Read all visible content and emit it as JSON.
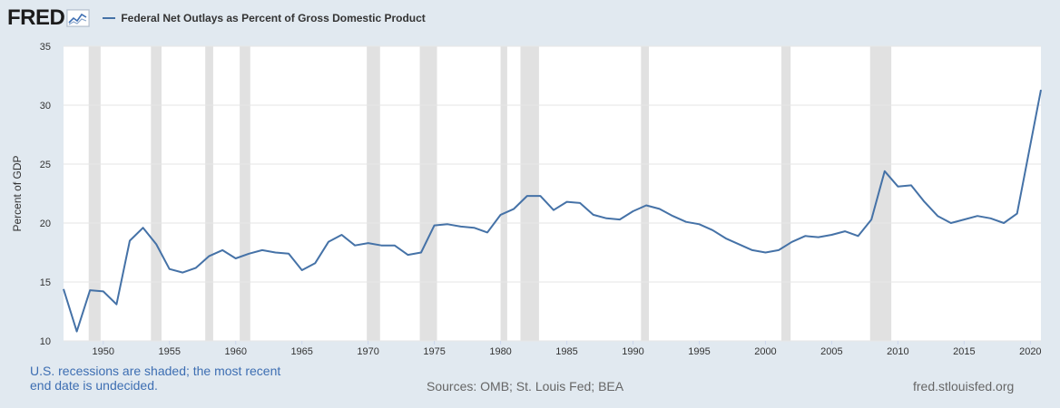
{
  "header": {
    "logo_text": "FRED",
    "logo_icon": "trend-line-icon",
    "legend_label": "Federal Net Outlays as Percent of Gross Domestic Product",
    "series_color": "#4572a7"
  },
  "footer": {
    "recession_note": "U.S. recessions are shaded; the most recent end date is undecided.",
    "sources": "Sources: OMB; St. Louis Fed; BEA",
    "site": "fred.stlouisfed.org"
  },
  "chart_data": {
    "type": "line",
    "ylabel": "Percent of GDP",
    "xlim": [
      1947,
      2020.8
    ],
    "ylim": [
      10,
      35
    ],
    "grid": true,
    "legend": "top-left",
    "xticks": [
      1950,
      1955,
      1960,
      1965,
      1970,
      1975,
      1980,
      1985,
      1990,
      1995,
      2000,
      2005,
      2010,
      2015,
      2020
    ],
    "yticks": [
      10,
      15,
      20,
      25,
      30,
      35
    ],
    "recessions": [
      [
        1948.9,
        1949.8
      ],
      [
        1953.6,
        1954.4
      ],
      [
        1957.7,
        1958.3
      ],
      [
        1960.3,
        1961.1
      ],
      [
        1969.9,
        1970.9
      ],
      [
        1973.9,
        1975.2
      ],
      [
        1980.0,
        1980.5
      ],
      [
        1981.5,
        1982.9
      ],
      [
        1990.6,
        1991.2
      ],
      [
        2001.2,
        2001.9
      ],
      [
        2007.9,
        2009.5
      ]
    ],
    "series": [
      {
        "name": "Federal Net Outlays as Percent of Gross Domestic Product",
        "x": [
          1947,
          1948,
          1949,
          1950,
          1951,
          1952,
          1953,
          1954,
          1955,
          1956,
          1957,
          1958,
          1959,
          1960,
          1961,
          1962,
          1963,
          1964,
          1965,
          1966,
          1967,
          1968,
          1969,
          1970,
          1971,
          1972,
          1973,
          1974,
          1975,
          1976,
          1977,
          1978,
          1979,
          1980,
          1981,
          1982,
          1983,
          1984,
          1985,
          1986,
          1987,
          1988,
          1989,
          1990,
          1991,
          1992,
          1993,
          1994,
          1995,
          1996,
          1997,
          1998,
          1999,
          2000,
          2001,
          2002,
          2003,
          2004,
          2005,
          2006,
          2007,
          2008,
          2009,
          2010,
          2011,
          2012,
          2013,
          2014,
          2015,
          2016,
          2017,
          2018,
          2019,
          2020.8
        ],
        "values": [
          14.4,
          10.8,
          14.3,
          14.2,
          13.1,
          18.5,
          19.6,
          18.2,
          16.1,
          15.8,
          16.2,
          17.2,
          17.7,
          17.0,
          17.4,
          17.7,
          17.5,
          17.4,
          16.0,
          16.6,
          18.4,
          19.0,
          18.1,
          18.3,
          18.1,
          18.1,
          17.3,
          17.5,
          19.8,
          19.9,
          19.7,
          19.6,
          19.2,
          20.7,
          21.2,
          22.3,
          22.3,
          21.1,
          21.8,
          21.7,
          20.7,
          20.4,
          20.3,
          21.0,
          21.5,
          21.2,
          20.6,
          20.1,
          19.9,
          19.4,
          18.7,
          18.2,
          17.7,
          17.5,
          17.7,
          18.4,
          18.9,
          18.8,
          19.0,
          19.3,
          18.9,
          20.3,
          24.4,
          23.1,
          23.2,
          21.8,
          20.6,
          20.0,
          20.3,
          20.6,
          20.4,
          20.0,
          20.8,
          31.3
        ]
      }
    ]
  }
}
